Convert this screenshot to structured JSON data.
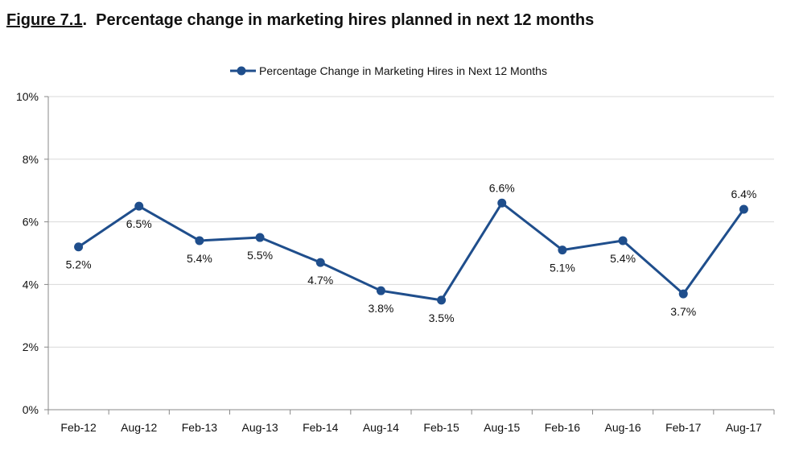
{
  "figure": {
    "number": "Figure 7.1",
    "title": "Percentage change in marketing hires planned in next 12 months"
  },
  "chart_data": {
    "type": "line",
    "categories": [
      "Feb-12",
      "Aug-12",
      "Feb-13",
      "Aug-13",
      "Feb-14",
      "Aug-14",
      "Feb-15",
      "Aug-15",
      "Feb-16",
      "Aug-16",
      "Feb-17",
      "Aug-17"
    ],
    "series": [
      {
        "name": "Percentage Change in Marketing Hires in Next 12 Months",
        "values": [
          5.2,
          6.5,
          5.4,
          5.5,
          4.7,
          3.8,
          3.5,
          6.6,
          5.1,
          5.4,
          3.7,
          6.4
        ],
        "labels": [
          "5.2%",
          "6.5%",
          "5.4%",
          "5.5%",
          "4.7%",
          "3.8%",
          "3.5%",
          "6.6%",
          "5.1%",
          "5.4%",
          "3.7%",
          "6.4%"
        ],
        "label_position": [
          "below",
          "below",
          "below",
          "below",
          "below",
          "below",
          "below",
          "above",
          "below",
          "below",
          "below",
          "above"
        ],
        "color": "#1F4E8C"
      }
    ],
    "yticks": [
      "0%",
      "2%",
      "4%",
      "6%",
      "8%",
      "10%"
    ],
    "ytick_values": [
      0,
      2,
      4,
      6,
      8,
      10
    ],
    "ylim": [
      0,
      10
    ],
    "grid": true,
    "legend": "top-center",
    "xlabel": "",
    "ylabel": ""
  }
}
